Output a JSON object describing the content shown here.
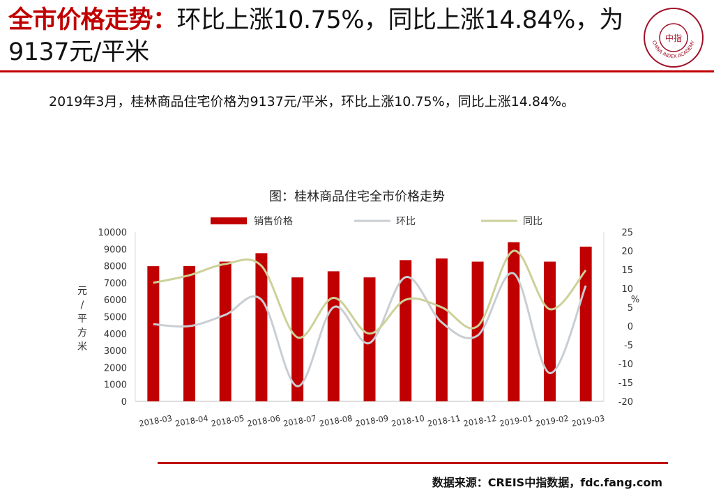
{
  "header": {
    "title_highlight": "全市价格走势：",
    "title_rest": "环比上涨10.75%，同比上涨14.84%，为9137元/平米",
    "logo_text": "CHINA INDEX ACADEMY",
    "logo_center": "中指"
  },
  "summary": "2019年3月，桂林商品住宅价格为9137元/平米，环比上涨10.75%，同比上涨14.84%。",
  "footer": {
    "source": "数据来源：CREIS中指数据，fdc.fang.com"
  },
  "colors": {
    "bar": "#c00000",
    "mom_line": "#c9ced3",
    "yoy_line": "#cdd199",
    "accent": "#c00000"
  },
  "chart_data": {
    "type": "bar",
    "title": "图：桂林商品住宅全市价格走势",
    "categories": [
      "2018-03",
      "2018-04",
      "2018-05",
      "2018-06",
      "2018-07",
      "2018-08",
      "2018-09",
      "2018-10",
      "2018-11",
      "2018-12",
      "2019-01",
      "2019-02",
      "2019-03"
    ],
    "ylabel_left": "元/平方米",
    "ylabel_right": "%",
    "ylim_left": [
      0,
      10000
    ],
    "ylim_right": [
      -20,
      25
    ],
    "yticks_left": [
      "0",
      "1000",
      "2000",
      "3000",
      "4000",
      "5000",
      "6000",
      "7000",
      "8000",
      "9000",
      "10000"
    ],
    "yticks_right": [
      "-20",
      "-15",
      "-10",
      "-5",
      "0",
      "5",
      "10",
      "15",
      "20",
      "25"
    ],
    "legend": "top",
    "series": [
      {
        "name": "销售价格",
        "type": "bar",
        "axis": "left",
        "values": [
          7980,
          7990,
          8250,
          8750,
          7320,
          7680,
          7320,
          8340,
          8440,
          8250,
          9400,
          8250,
          9137
        ]
      },
      {
        "name": "环比",
        "type": "line",
        "axis": "right",
        "values": [
          0.5,
          0,
          3,
          7,
          -16,
          5,
          -4.5,
          13,
          1,
          -2.5,
          14,
          -12.5,
          10.75
        ]
      },
      {
        "name": "同比",
        "type": "line",
        "axis": "right",
        "values": [
          11.5,
          13.5,
          16.5,
          16,
          -3,
          7.5,
          -2,
          7,
          5,
          0,
          20,
          4.5,
          14.84
        ]
      }
    ]
  }
}
